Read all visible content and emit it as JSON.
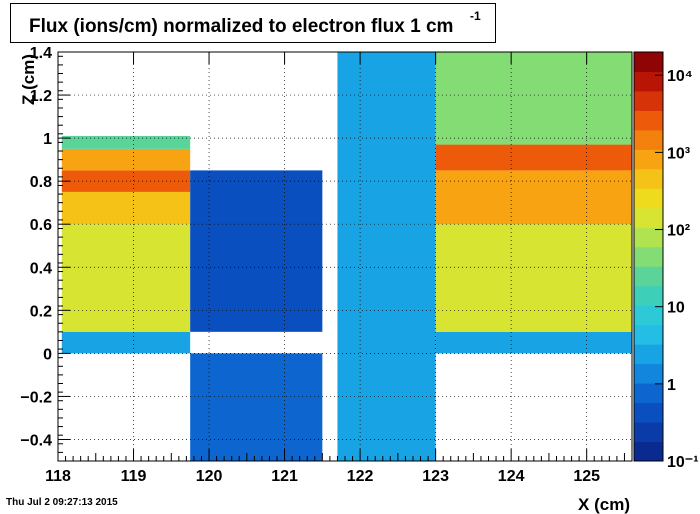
{
  "title": "Flux (ions/cm) normalized to electron flux 1 cm",
  "title_superscript": "-1",
  "timestamp": "Thu Jul  2 09:27:13 2015",
  "chart_data": {
    "type": "heatmap",
    "title": "Flux (ions/cm) normalized to electron flux 1 cm-1",
    "xlabel": "X (cm)",
    "ylabel": "Z (cm)",
    "xlim": [
      118,
      125.6
    ],
    "ylim": [
      -0.5,
      1.4
    ],
    "xticks": [
      "118",
      "119",
      "120",
      "121",
      "122",
      "123",
      "124",
      "125"
    ],
    "yticks": [
      "−0.4",
      "−0.2",
      "0",
      "0.2",
      "0.4",
      "0.6",
      "0.8",
      "1",
      "1.2",
      "1.4"
    ],
    "ytick_values": [
      -0.4,
      -0.2,
      0,
      0.2,
      0.4,
      0.6,
      0.8,
      1.0,
      1.2,
      1.4
    ],
    "grid": true,
    "colorbar": {
      "scale": "log",
      "range": [
        0.1,
        20000
      ],
      "labels": [
        "10⁻¹",
        "1",
        "10",
        "10²",
        "10³",
        "10⁴"
      ],
      "label_values": [
        0.1,
        1,
        10,
        100,
        1000,
        10000
      ],
      "colors": [
        "#0b2a8f",
        "#0a3ba8",
        "#0a4fc0",
        "#0d66d0",
        "#1186dc",
        "#18a4e4",
        "#23bde6",
        "#2ec9d6",
        "#3ecfb8",
        "#5bd49a",
        "#84dc74",
        "#b0e34f",
        "#d7e532",
        "#eedb1e",
        "#f5c317",
        "#f7a312",
        "#f4800d",
        "#ec5a0a",
        "#d73308",
        "#b81506",
        "#8f0404"
      ]
    },
    "regions": [
      {
        "name": "left-bulk",
        "x": [
          118.05,
          119.75
        ],
        "z_bands": [
          {
            "z": [
              0.0,
              0.1
            ],
            "value": 3
          },
          {
            "z": [
              0.1,
              0.6
            ],
            "value": 120
          },
          {
            "z": [
              0.6,
              0.75
            ],
            "value": 600
          },
          {
            "z": [
              0.75,
              0.85
            ],
            "value": 2500
          },
          {
            "z": [
              0.85,
              0.95
            ],
            "value": 800
          },
          {
            "z": [
              0.95,
              1.01
            ],
            "value": 20
          }
        ]
      },
      {
        "name": "gap-structure",
        "x": [
          119.75,
          121.5
        ],
        "z_bands": [
          {
            "z": [
              0.1,
              0.85
            ],
            "value": 0.5
          },
          {
            "z": [
              -0.5,
              0.0
            ],
            "value": 0.8
          }
        ]
      },
      {
        "name": "central-column",
        "x": [
          121.7,
          123.0
        ],
        "z_bands": [
          {
            "z": [
              -0.5,
              1.4
            ],
            "value": 3
          }
        ]
      },
      {
        "name": "right-bulk",
        "x": [
          123.0,
          125.6
        ],
        "z_bands": [
          {
            "z": [
              0.0,
              0.1
            ],
            "value": 3
          },
          {
            "z": [
              0.1,
              0.6
            ],
            "value": 120
          },
          {
            "z": [
              0.6,
              0.85
            ],
            "value": 700
          },
          {
            "z": [
              0.85,
              0.97
            ],
            "value": 2500
          },
          {
            "z": [
              0.97,
              1.4
            ],
            "value": 40
          }
        ]
      }
    ]
  }
}
